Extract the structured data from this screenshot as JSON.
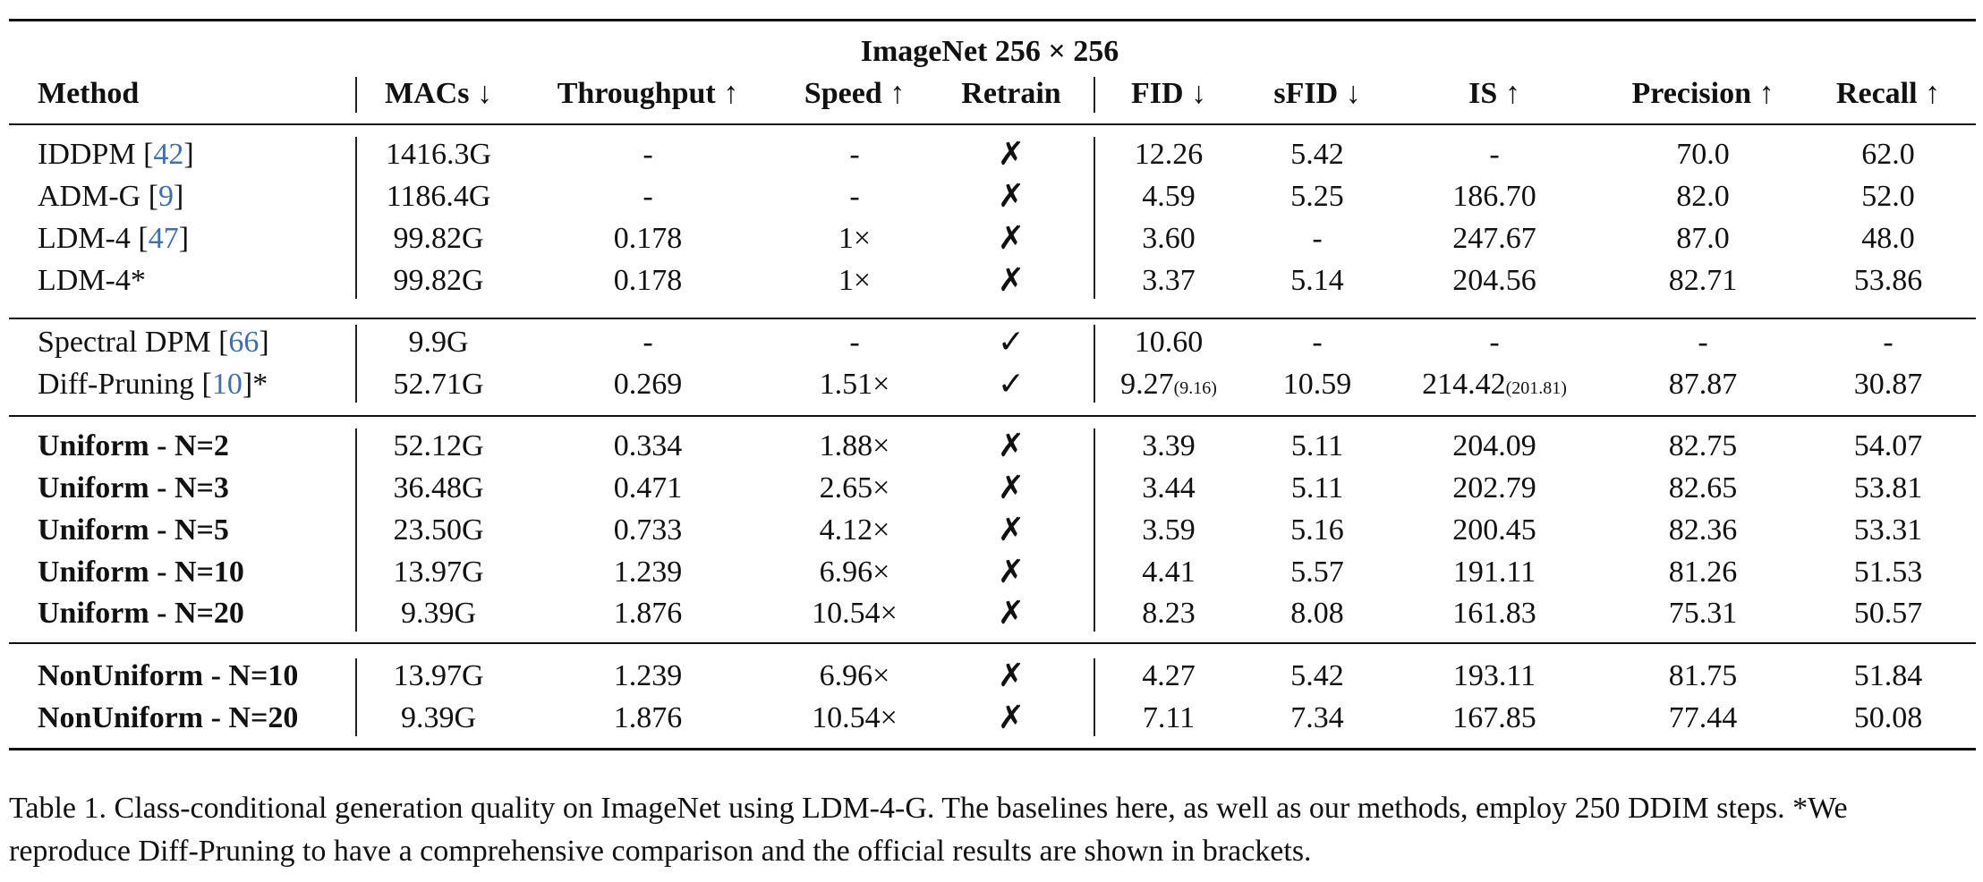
{
  "group_header": "ImageNet 256 × 256",
  "columns": [
    "Method",
    "MACs ↓",
    "Throughput ↑",
    "Speed ↑",
    "Retrain",
    "FID ↓",
    "sFID ↓",
    "IS ↑",
    "Precision ↑",
    "Recall ↑"
  ],
  "rows": [
    {
      "method": "IDDPM ",
      "cite": "42",
      "suffix": "",
      "bold": false,
      "macs": "1416.3G",
      "throughput": "-",
      "speed": "-",
      "retrain": "✗",
      "fid": "12.26",
      "fid_note": "",
      "sfid": "5.42",
      "is": "-",
      "is_note": "",
      "precision": "70.0",
      "recall": "62.0"
    },
    {
      "method": "ADM-G ",
      "cite": "9",
      "suffix": "",
      "bold": false,
      "macs": "1186.4G",
      "throughput": "-",
      "speed": "-",
      "retrain": "✗",
      "fid": "4.59",
      "fid_note": "",
      "sfid": "5.25",
      "is": "186.70",
      "is_note": "",
      "precision": "82.0",
      "recall": "52.0"
    },
    {
      "method": "LDM-4 ",
      "cite": "47",
      "suffix": "",
      "bold": false,
      "macs": "99.82G",
      "throughput": "0.178",
      "speed": "1×",
      "retrain": "✗",
      "fid": "3.60",
      "fid_note": "",
      "sfid": "-",
      "is": "247.67",
      "is_note": "",
      "precision": "87.0",
      "recall": "48.0"
    },
    {
      "method": "LDM-4*",
      "cite": "",
      "suffix": "",
      "bold": false,
      "macs": "99.82G",
      "throughput": "0.178",
      "speed": "1×",
      "retrain": "✗",
      "fid": "3.37",
      "fid_note": "",
      "sfid": "5.14",
      "is": "204.56",
      "is_note": "",
      "precision": "82.71",
      "recall": "53.86"
    },
    {
      "method": "Spectral DPM ",
      "cite": "66",
      "suffix": "",
      "bold": false,
      "macs": "9.9G",
      "throughput": "-",
      "speed": "-",
      "retrain": "✓",
      "fid": "10.60",
      "fid_note": "",
      "sfid": "-",
      "is": "-",
      "is_note": "",
      "precision": "-",
      "recall": "-"
    },
    {
      "method": "Diff-Pruning ",
      "cite": "10",
      "suffix": "*",
      "bold": false,
      "macs": "52.71G",
      "throughput": "0.269",
      "speed": "1.51×",
      "retrain": "✓",
      "fid": "9.27",
      "fid_note": "(9.16)",
      "sfid": "10.59",
      "is": "214.42",
      "is_note": "(201.81)",
      "precision": "87.87",
      "recall": "30.87"
    },
    {
      "method": "Uniform - N=2",
      "cite": "",
      "suffix": "",
      "bold": true,
      "macs": "52.12G",
      "throughput": "0.334",
      "speed": "1.88×",
      "retrain": "✗",
      "fid": "3.39",
      "fid_note": "",
      "sfid": "5.11",
      "is": "204.09",
      "is_note": "",
      "precision": "82.75",
      "recall": "54.07"
    },
    {
      "method": "Uniform - N=3",
      "cite": "",
      "suffix": "",
      "bold": true,
      "macs": "36.48G",
      "throughput": "0.471",
      "speed": "2.65×",
      "retrain": "✗",
      "fid": "3.44",
      "fid_note": "",
      "sfid": "5.11",
      "is": "202.79",
      "is_note": "",
      "precision": "82.65",
      "recall": "53.81"
    },
    {
      "method": "Uniform - N=5",
      "cite": "",
      "suffix": "",
      "bold": true,
      "macs": "23.50G",
      "throughput": "0.733",
      "speed": "4.12×",
      "retrain": "✗",
      "fid": "3.59",
      "fid_note": "",
      "sfid": "5.16",
      "is": "200.45",
      "is_note": "",
      "precision": "82.36",
      "recall": "53.31"
    },
    {
      "method": "Uniform - N=10",
      "cite": "",
      "suffix": "",
      "bold": true,
      "macs": "13.97G",
      "throughput": "1.239",
      "speed": "6.96×",
      "retrain": "✗",
      "fid": "4.41",
      "fid_note": "",
      "sfid": "5.57",
      "is": "191.11",
      "is_note": "",
      "precision": "81.26",
      "recall": "51.53"
    },
    {
      "method": "Uniform - N=20",
      "cite": "",
      "suffix": "",
      "bold": true,
      "macs": "9.39G",
      "throughput": "1.876",
      "speed": "10.54×",
      "retrain": "✗",
      "fid": "8.23",
      "fid_note": "",
      "sfid": "8.08",
      "is": "161.83",
      "is_note": "",
      "precision": "75.31",
      "recall": "50.57"
    },
    {
      "method": "NonUniform - N=10",
      "cite": "",
      "suffix": "",
      "bold": true,
      "macs": "13.97G",
      "throughput": "1.239",
      "speed": "6.96×",
      "retrain": "✗",
      "fid": "4.27",
      "fid_note": "",
      "sfid": "5.42",
      "is": "193.11",
      "is_note": "",
      "precision": "81.75",
      "recall": "51.84"
    },
    {
      "method": "NonUniform - N=20",
      "cite": "",
      "suffix": "",
      "bold": true,
      "macs": "9.39G",
      "throughput": "1.876",
      "speed": "10.54×",
      "retrain": "✗",
      "fid": "7.11",
      "fid_note": "",
      "sfid": "7.34",
      "is": "167.85",
      "is_note": "",
      "precision": "77.44",
      "recall": "50.08"
    }
  ],
  "caption": "Table 1. Class-conditional generation quality on ImageNet using LDM-4-G. The baselines here, as well as our methods, employ 250 DDIM steps. *We reproduce Diff-Pruning to have a comprehensive comparison and the official results are shown in brackets."
}
